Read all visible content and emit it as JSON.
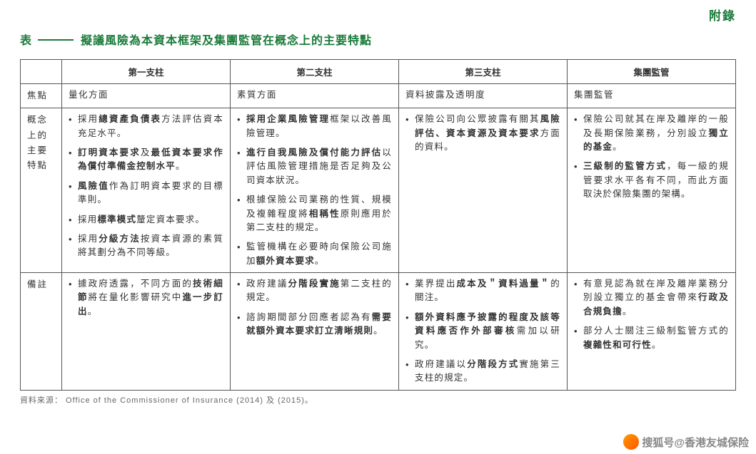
{
  "appendix_label": "附錄",
  "title_prefix": "表",
  "title_main": "擬議風險為本資本框架及集團監管在概念上的主要特點",
  "headers": {
    "blank": "",
    "col1": "第一支柱",
    "col2": "第二支柱",
    "col3": "第三支柱",
    "col4": "集團監管"
  },
  "row_focus": {
    "label": "焦點",
    "c1": "量化方面",
    "c2": "素質方面",
    "c3": "資料披露及透明度",
    "c4": "集團監管"
  },
  "row_concept": {
    "label": "概念上的主要特點",
    "c1": [
      "採用<span class='b'>總資產負債表</span>方法評估資本充足水平。",
      "<span class='b'>訂明資本要求</span>及<span class='b'>最低資本要求作為償付準備金控制水平</span>。",
      "<span class='b'>風險值</span>作為訂明資本要求的目標準則。",
      "採用<span class='b'>標準模式</span>釐定資本要求。",
      "採用<span class='b'>分級方法</span>按資本資源的素質將其劃分為不同等級。"
    ],
    "c2": [
      "<span class='b'>採用企業風險管理</span>框架以改善風險管理。",
      "<span class='b'>進行自我風險及償付能力評估</span>以評估風險管理措施是否足夠及公司資本狀況。",
      "根據保險公司業務的性質、規模及複雜程度將<span class='b'>相稱性</span>原則應用於第二支柱的規定。",
      "監管機構在必要時向保險公司施加<span class='b'>額外資本要求</span>。"
    ],
    "c3": [
      "保險公司向公眾披露有關其<span class='b'>風險評估、資本資源及資本要求</span>方面的資料。"
    ],
    "c4": [
      "保險公司就其在岸及離岸的一般及長期保險業務，分別設立<span class='b'>獨立的基金</span>。",
      "<span class='b'>三級制的監管方式</span>，每一級的規管要求水平各有不同，而此方面取決於保險集團的架構。"
    ]
  },
  "row_notes": {
    "label": "備註",
    "c1": [
      "據政府透露，不同方面的<span class='b'>技術細節</span>將在量化影響研究中<span class='b'>進一步訂出</span>。"
    ],
    "c2": [
      "政府建議<span class='b'>分階段實施</span>第二支柱的規定。",
      "諮詢期間部分回應者認為有<span class='b'>需要就額外資本要求訂立清晰規則</span>。"
    ],
    "c3": [
      "業界提出<span class='b'>成本及＂資料過量＂</span>的關注。",
      "<span class='b'>額外資料應予披露的程度及該等資料應否作外部審核</span>需加以研究。",
      "政府建議以<span class='b'>分階段方式</span>實施第三支柱的規定。"
    ],
    "c4": [
      "有意見認為就在岸及離岸業務分別設立獨立的基金會帶來<span class='b'>行政及合規負擔</span>。",
      "部分人士關注三級制監管方式的<span class='b'>複雜性和可行性</span>。"
    ]
  },
  "source": "資料來源： Office of the Commissioner of Insurance (2014) 及 (2015)。",
  "watermark": "搜狐号@香港友城保险"
}
